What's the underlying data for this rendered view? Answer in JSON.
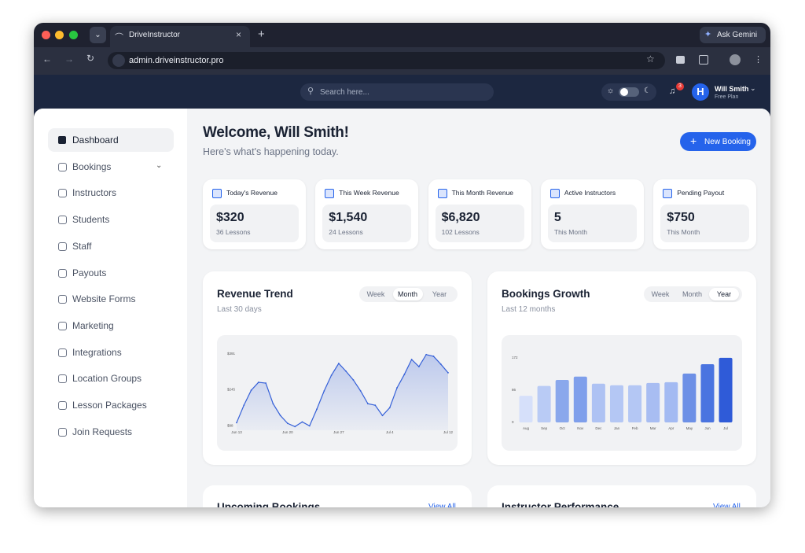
{
  "browser": {
    "tab_title": "DriveInstructor",
    "url": "admin.driveinstructor.pro",
    "ask": "Ask Gemini"
  },
  "topbar": {
    "search_placeholder": "Search here...",
    "notifications": 3,
    "user_name": "Will Smith",
    "user_plan": "Free Plan"
  },
  "sidebar": {
    "items": [
      "Dashboard",
      "Bookings",
      "Instructors",
      "Students",
      "Staff",
      "Payouts",
      "Website Forms",
      "Marketing",
      "Integrations",
      "Location Groups",
      "Lesson Packages",
      "Join Requests"
    ],
    "active": 0
  },
  "header": {
    "title": "Welcome, Will Smith!",
    "subtitle": "Here's what's happening today.",
    "button": "New Booking"
  },
  "stats": [
    {
      "label": "Today's Revenue",
      "value": "$320",
      "sub": "36 Lessons"
    },
    {
      "label": "This Week Revenue",
      "value": "$1,540",
      "sub": "24 Lessons"
    },
    {
      "label": "This Month Revenue",
      "value": "$6,820",
      "sub": "102 Lessons"
    },
    {
      "label": "Active Instructors",
      "value": "5",
      "sub": "This Month"
    },
    {
      "label": "Pending Payout",
      "value": "$750",
      "sub": "This Month"
    }
  ],
  "chart_data": [
    {
      "type": "line",
      "title": "Revenue Trend",
      "subtitle": "Last 30 days",
      "tabs": [
        "Week",
        "Month",
        "Year"
      ],
      "active_tab": 1,
      "categories": [
        "Jun 13",
        null,
        null,
        null,
        null,
        null,
        null,
        "Jun 20",
        null,
        null,
        null,
        null,
        null,
        null,
        "Jun 27",
        null,
        null,
        null,
        null,
        null,
        null,
        "Jul 4",
        null,
        null,
        null,
        null,
        null,
        null,
        null,
        "Jul 12"
      ],
      "values": [
        111,
        182,
        243,
        275,
        272,
        188,
        140,
        108,
        95,
        114,
        98,
        166,
        240,
        304,
        352,
        320,
        285,
        240,
        188,
        182,
        140,
        172,
        253,
        307,
        368,
        339,
        388,
        381,
        349,
        314
      ],
      "color": "#3560d8",
      "ylim": [
        80,
        400
      ],
      "yticks": [
        {
          "value": 98,
          "label": "$98"
        },
        {
          "value": 245,
          "label": "$245"
        },
        {
          "value": 391,
          "label": "$391"
        }
      ]
    },
    {
      "type": "bar",
      "title": "Bookings Growth",
      "subtitle": "Last 12 months",
      "tabs": [
        "Week",
        "Month",
        "Year"
      ],
      "active_tab": 2,
      "categories": [
        "Aug",
        "Sep",
        "Oct",
        "Nov",
        "Dec",
        "Jan",
        "Feb",
        "Mar",
        "Apr",
        "May",
        "Jun",
        "Jul"
      ],
      "values": [
        71,
        97,
        113,
        122,
        103,
        99,
        99,
        105,
        107,
        130,
        155,
        172
      ],
      "colors": [
        "#d6e0fa",
        "#b9cbf5",
        "#8aa8ec",
        "#7f9feb",
        "#aec2f3",
        "#b4c7f4",
        "#b4c7f4",
        "#a8bdf2",
        "#a3baf2",
        "#6d90e6",
        "#4a74e0",
        "#2f5bd8"
      ],
      "ylim": [
        0,
        180
      ],
      "yticks": [
        0,
        86,
        172
      ]
    }
  ],
  "sections": [
    {
      "title": "Upcoming Bookings",
      "link": "View All"
    },
    {
      "title": "Instructor Performance",
      "link": "View All"
    }
  ]
}
